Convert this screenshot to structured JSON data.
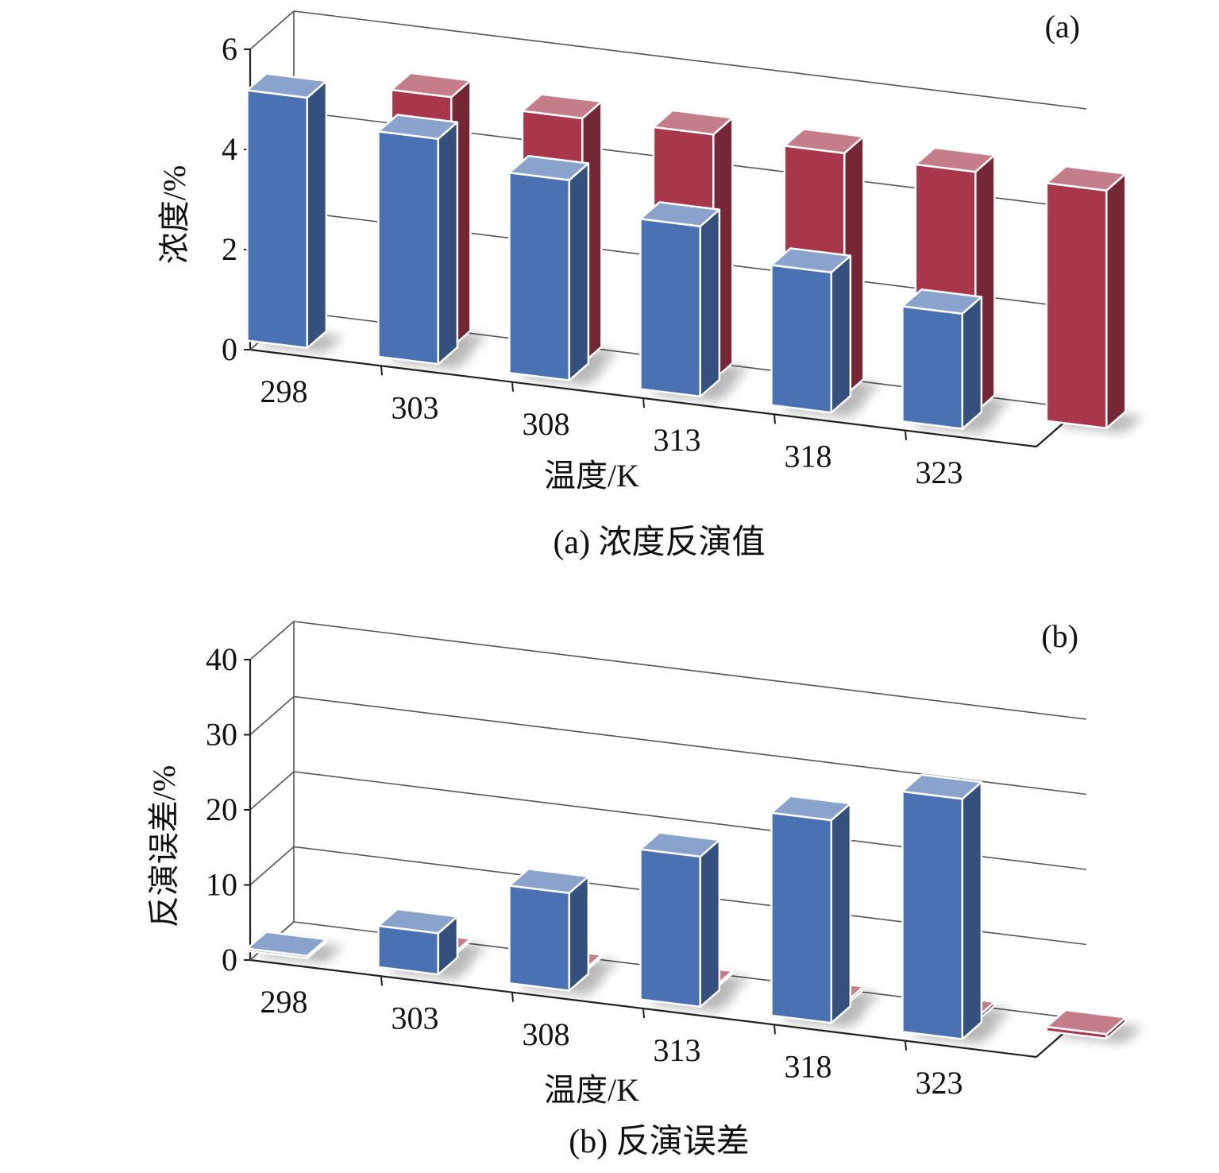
{
  "chart_data": [
    {
      "type": "bar",
      "panel_tag": "(a)",
      "caption": "(a) 浓度反演值",
      "xlabel": "温度/K",
      "ylabel": "浓度/%",
      "categories": [
        "298",
        "303",
        "308",
        "313",
        "318",
        "323"
      ],
      "ylim": [
        0,
        6
      ],
      "yticks": [
        "0",
        "2",
        "4",
        "6"
      ],
      "grid": true,
      "series": [
        {
          "values": [
            5.0,
            4.9,
            4.9,
            4.85,
            4.8,
            4.75
          ],
          "color": "#a8374b"
        },
        {
          "values": [
            5.0,
            4.5,
            4.0,
            3.4,
            2.8,
            2.3
          ],
          "color": "#4a72b2"
        }
      ]
    },
    {
      "type": "bar",
      "panel_tag": "(b)",
      "caption": "(b) 反演误差",
      "xlabel": "温度/K",
      "ylabel": "反演误差/%",
      "categories": [
        "298",
        "303",
        "308",
        "313",
        "318",
        "323"
      ],
      "ylim": [
        0,
        40
      ],
      "yticks": [
        "0",
        "10",
        "20",
        "30",
        "40"
      ],
      "grid": true,
      "series": [
        {
          "values": [
            0.1,
            0.3,
            0.3,
            0.4,
            0.5,
            0.6
          ],
          "color": "#a8374b"
        },
        {
          "values": [
            0.2,
            5.5,
            13.0,
            20.0,
            27.0,
            32.0
          ],
          "color": "#4a72b2"
        }
      ]
    }
  ]
}
